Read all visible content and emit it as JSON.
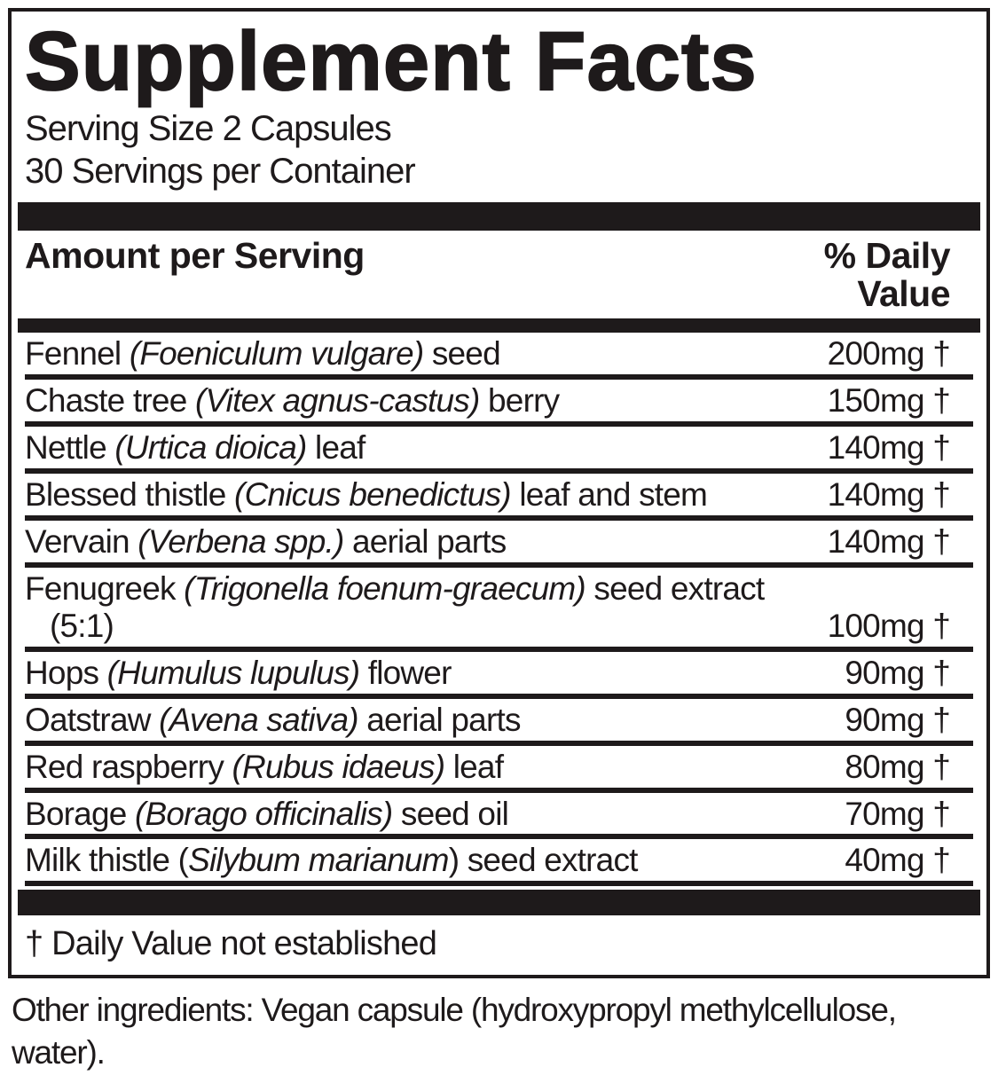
{
  "label": {
    "title": "Supplement Facts",
    "serving_size": "Serving Size 2 Capsules",
    "servings_per_container": "30 Servings per Container",
    "column_header": {
      "amount_per_serving": "Amount per Serving",
      "daily_value_line1": "% Daily",
      "daily_value_line2": "Value"
    },
    "rows": [
      {
        "pre": "Fennel ",
        "italic": "(Foeniculum vulgare)",
        "post": " seed",
        "amount": "200mg †"
      },
      {
        "pre": "Chaste tree ",
        "italic": "(Vitex agnus-castus)",
        "post": " berry",
        "amount": "150mg †"
      },
      {
        "pre": "Nettle ",
        "italic": "(Urtica dioica)",
        "post": " leaf",
        "amount": "140mg †"
      },
      {
        "pre": "Blessed thistle ",
        "italic": "(Cnicus benedictus)",
        "post": " leaf and stem",
        "amount": "140mg †"
      },
      {
        "pre": "Vervain ",
        "italic": "(Verbena spp.)",
        "post": " aerial parts",
        "amount": "140mg †"
      },
      {
        "pre": "Fenugreek ",
        "italic": "(Trigonella foenum-graecum)",
        "post": " seed extract",
        "line2": "(5:1)",
        "amount": "100mg †"
      },
      {
        "pre": "Hops ",
        "italic": "(Humulus lupulus)",
        "post": " flower",
        "amount": "90mg †"
      },
      {
        "pre": "Oatstraw ",
        "italic": "(Avena sativa)",
        "post": " aerial parts",
        "amount": "90mg †"
      },
      {
        "pre": "Red raspberry ",
        "italic": "(Rubus idaeus)",
        "post": " leaf",
        "amount": "80mg †"
      },
      {
        "pre": "Borage ",
        "italic": "(Borago officinalis)",
        "post": " seed oil",
        "amount": "70mg †"
      },
      {
        "pre": "Milk thistle (",
        "italic": "Silybum marianum",
        "post": ") seed extract",
        "amount": "40mg †"
      }
    ],
    "footnote": "† Daily Value not established"
  },
  "other_ingredients": {
    "line1": "Other ingredients: Vegan capsule (hydroxypropyl methylcellulose,",
    "line2": "water)."
  },
  "colors": {
    "ink": "#1e1a1b",
    "background": "#ffffff"
  }
}
